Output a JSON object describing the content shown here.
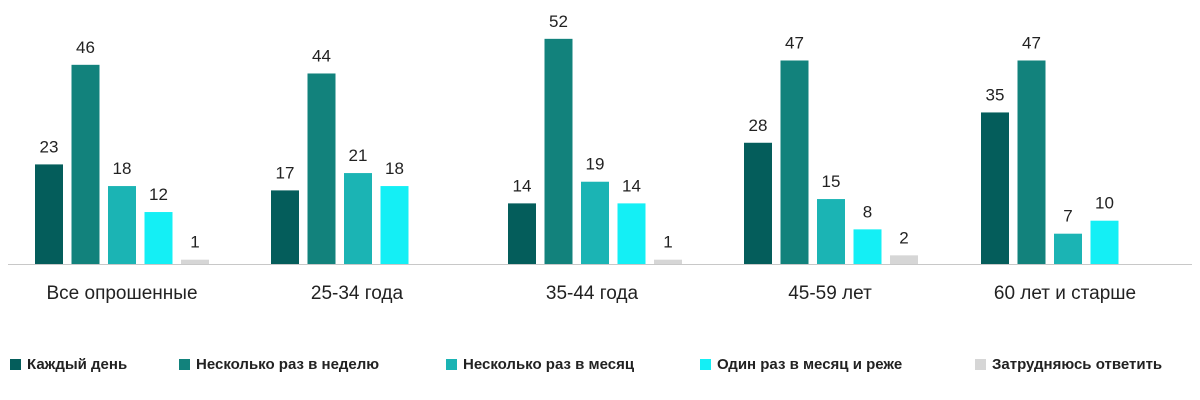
{
  "chart_data": {
    "type": "bar",
    "categories": [
      "Все опрошенные",
      "25-34 года",
      "35-44 года",
      "45-59 лет",
      "60 лет и старше"
    ],
    "series": [
      {
        "name": "Каждый день",
        "color": "#045d5b",
        "values": [
          23,
          17,
          14,
          28,
          35
        ]
      },
      {
        "name": "Несколько раз в неделю",
        "color": "#12827c",
        "values": [
          46,
          44,
          52,
          47,
          47
        ]
      },
      {
        "name": "Несколько раз в месяц",
        "color": "#1bb4b4",
        "values": [
          18,
          21,
          19,
          15,
          7
        ]
      },
      {
        "name": "Один раз в месяц и реже",
        "color": "#14eff5",
        "values": [
          12,
          18,
          14,
          8,
          10
        ]
      },
      {
        "name": "Затрудняюсь ответить",
        "color": "#d6d6d6",
        "values": [
          1,
          null,
          1,
          2,
          null
        ]
      }
    ],
    "ylim": [
      0,
      52
    ],
    "grid": false,
    "legend_position": "bottom"
  }
}
